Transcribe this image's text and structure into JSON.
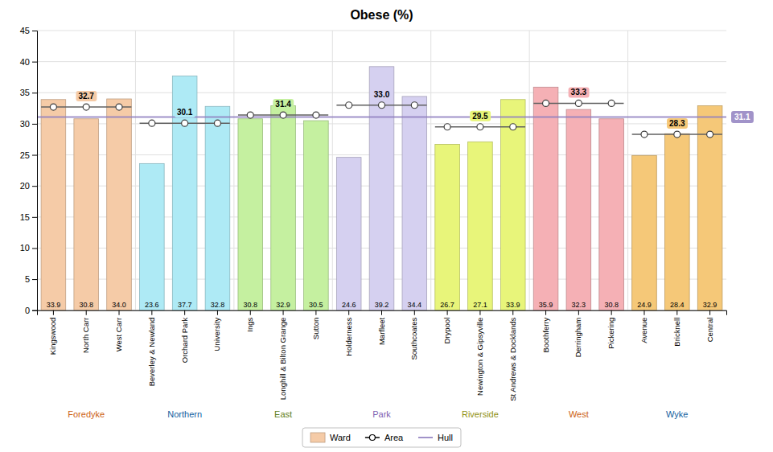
{
  "chart_data": {
    "type": "bar",
    "title": "Obese (%)",
    "categories": [
      "Kingswood",
      "North Carr",
      "West Carr",
      "Beverley & Newland",
      "Orchard Park",
      "University",
      "Ings",
      "Longhill & Bilton Grange",
      "Sutton",
      "Holderness",
      "Marfleet",
      "Southcoates",
      "Drypool",
      "Newington & Gipsyville",
      "St Andrews & Docklands",
      "Boothferry",
      "Derringham",
      "Pickering",
      "Avenue",
      "Bricknell",
      "Central"
    ],
    "series": [
      {
        "name": "Ward",
        "type": "bar",
        "values": [
          33.9,
          30.8,
          34.0,
          23.6,
          37.7,
          32.8,
          30.8,
          32.9,
          30.5,
          24.6,
          39.2,
          34.4,
          26.7,
          27.1,
          33.9,
          35.9,
          32.3,
          30.8,
          24.9,
          28.4,
          32.9
        ],
        "value_labels": [
          "33.9",
          "30.8",
          "34.0",
          "23.6",
          "37.7",
          "32.8",
          "30.8",
          "32.9",
          "30.5",
          "24.6",
          "39.2",
          "34.4",
          "26.7",
          "27.1",
          "33.9",
          "35.9",
          "32.3",
          "30.8",
          "24.9",
          "28.4",
          "32.9"
        ],
        "colors": [
          "#f5cba7",
          "#f5cba7",
          "#f5cba7",
          "#aeeaf5",
          "#aeeaf5",
          "#aeeaf5",
          "#c5f0a0",
          "#c5f0a0",
          "#c5f0a0",
          "#d5d0f0",
          "#d5d0f0",
          "#d5d0f0",
          "#e8f57a",
          "#e8f57a",
          "#e8f57a",
          "#f5b0b5",
          "#f5b0b5",
          "#f5b0b5",
          "#f5c878",
          "#f5c878",
          "#f5c878"
        ]
      },
      {
        "name": "Area",
        "type": "line",
        "marker": "circle",
        "groups": [
          {
            "name": "Foredyke",
            "categories": [
              "Kingswood",
              "North Carr",
              "West Carr"
            ],
            "value": 32.7,
            "value_label": "32.7",
            "color": "#f5cba7",
            "label_color": "#cc6010"
          },
          {
            "name": "Northern",
            "categories": [
              "Beverley & Newland",
              "Orchard Park",
              "University"
            ],
            "value": 30.1,
            "value_label": "30.1",
            "color": "#aeeaf5",
            "label_color": "#1060a0"
          },
          {
            "name": "East",
            "categories": [
              "Ings",
              "Longhill & Bilton Grange",
              "Sutton"
            ],
            "value": 31.4,
            "value_label": "31.4",
            "color": "#c5f0a0",
            "label_color": "#608020"
          },
          {
            "name": "Park",
            "categories": [
              "Holderness",
              "Marfleet",
              "Southcoates"
            ],
            "value": 33.0,
            "value_label": "33.0",
            "color": "#d5d0f0",
            "label_color": "#8060b0"
          },
          {
            "name": "Riverside",
            "categories": [
              "Drypool",
              "Newington & Gipsyville",
              "St Andrews & Docklands"
            ],
            "value": 29.5,
            "value_label": "29.5",
            "color": "#e8f57a",
            "label_color": "#909010"
          },
          {
            "name": "West",
            "categories": [
              "Boothferry",
              "Derringham",
              "Pickering"
            ],
            "value": 33.3,
            "value_label": "33.3",
            "color": "#f5b0b5",
            "label_color": "#cc6010"
          },
          {
            "name": "Wyke",
            "categories": [
              "Avenue",
              "Bricknell",
              "Central"
            ],
            "value": 28.3,
            "value_label": "28.3",
            "color": "#f5c878",
            "label_color": "#1060a0"
          }
        ]
      },
      {
        "name": "Hull",
        "type": "line",
        "value": 31.1,
        "value_label": "31.1",
        "color": "#9080c0"
      }
    ],
    "data_labels": true,
    "legend": "bottom",
    "ylim": [
      0,
      45
    ],
    "yticks": [
      0,
      5,
      10,
      15,
      20,
      25,
      30,
      35,
      40,
      45
    ],
    "grid": true
  }
}
